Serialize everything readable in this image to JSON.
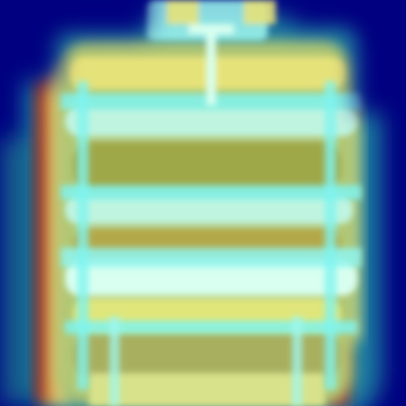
{
  "image": {
    "kind": "heatmap-overlay",
    "subject": "puffer-jacket",
    "colormap": "jet",
    "palette": {
      "background": "#000080",
      "deep_blue": "#00108a",
      "teal": "#1c7fa0",
      "cyan": "#7ff4f0",
      "pale_cyan": "#d8fff0",
      "green": "#7fbf5a",
      "yellow": "#e6e27a",
      "olive": "#b3a84a",
      "red": "#b41a10"
    }
  }
}
